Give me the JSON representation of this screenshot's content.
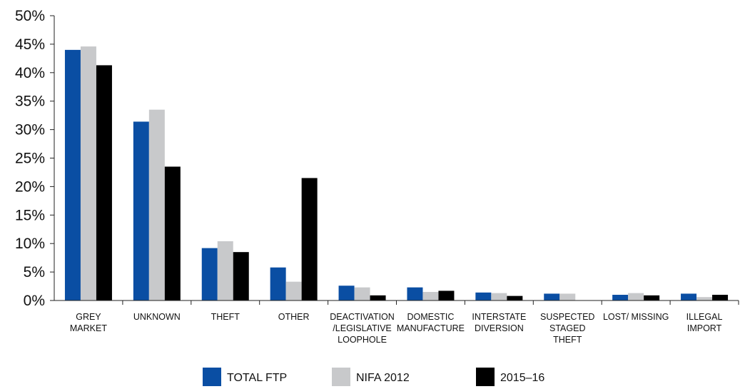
{
  "chart_data": {
    "type": "bar",
    "title": "",
    "xlabel": "",
    "ylabel": "",
    "ylim": [
      0,
      50
    ],
    "yticks": [
      "0%",
      "5%",
      "10%",
      "15%",
      "20%",
      "25%",
      "30%",
      "35%",
      "40%",
      "45%",
      "50%"
    ],
    "grid": false,
    "legend_position": "bottom",
    "categories": [
      [
        "GREY",
        "MARKET"
      ],
      [
        "UNKNOWN"
      ],
      [
        "THEFT"
      ],
      [
        "OTHER"
      ],
      [
        "DEACTIVATION",
        "/LEGISLATIVE",
        "LOOPHOLE"
      ],
      [
        "DOMESTIC",
        "MANUFACTURE"
      ],
      [
        "INTERSTATE",
        "DIVERSION"
      ],
      [
        "SUSPECTED",
        "STAGED",
        "THEFT"
      ],
      [
        "LOST/ MISSING"
      ],
      [
        "ILLEGAL",
        "IMPORT"
      ]
    ],
    "series": [
      {
        "name": "TOTAL FTP",
        "color": "#0a4ea3",
        "values": [
          44.0,
          31.4,
          9.2,
          5.8,
          2.6,
          2.3,
          1.4,
          1.2,
          1.0,
          1.2
        ]
      },
      {
        "name": "NIFA 2012",
        "color": "#c8c9cb",
        "values": [
          44.6,
          33.5,
          10.4,
          3.3,
          2.3,
          1.5,
          1.3,
          1.2,
          1.3,
          0.6
        ]
      },
      {
        "name": "2015–16",
        "color": "#000000",
        "values": [
          41.3,
          23.5,
          8.5,
          21.5,
          0.9,
          1.7,
          0.8,
          0,
          0.9,
          1.0
        ]
      }
    ]
  }
}
